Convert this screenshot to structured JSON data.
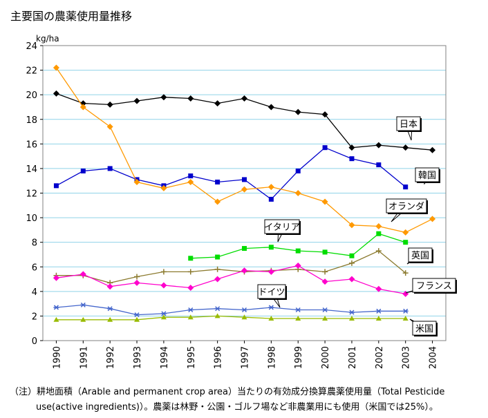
{
  "chart_data": {
    "type": "line",
    "title": "主要国の農薬使用量推移",
    "ylabel": "kg/ha",
    "xlabel": "",
    "ylim": [
      0,
      24
    ],
    "y_ticks": [
      "0",
      "2",
      "4",
      "6",
      "8",
      "10",
      "12",
      "14",
      "16",
      "18",
      "20",
      "22",
      "24"
    ],
    "categories": [
      "1990",
      "1991",
      "1992",
      "1993",
      "1994",
      "1995",
      "1996",
      "1997",
      "1998",
      "1999",
      "2000",
      "2001",
      "2002",
      "2003",
      "2004"
    ],
    "grid": "horizontal",
    "legend": "callouts",
    "series": [
      {
        "name": "日本",
        "color": "#000000",
        "marker": "diamond",
        "values": [
          20.1,
          19.3,
          19.2,
          19.5,
          19.8,
          19.7,
          19.3,
          19.7,
          19.0,
          18.6,
          18.4,
          15.7,
          15.9,
          15.7,
          15.5
        ]
      },
      {
        "name": "韓国",
        "color": "#0000cc",
        "marker": "square",
        "values": [
          12.6,
          13.8,
          14.0,
          13.1,
          12.6,
          13.4,
          12.9,
          13.1,
          11.5,
          13.8,
          15.7,
          14.8,
          14.3,
          12.5,
          null
        ]
      },
      {
        "name": "オランダ",
        "color": "#ff9900",
        "marker": "diamond",
        "values": [
          22.2,
          19.0,
          17.4,
          12.9,
          12.4,
          12.9,
          11.3,
          12.3,
          12.5,
          12.0,
          11.3,
          9.4,
          9.3,
          8.8,
          9.9
        ]
      },
      {
        "name": "イタリア",
        "color": "#00dd00",
        "marker": "square",
        "values": [
          null,
          null,
          null,
          null,
          null,
          6.7,
          6.8,
          7.5,
          7.6,
          7.3,
          7.2,
          6.9,
          8.7,
          8.0,
          null
        ]
      },
      {
        "name": "英国",
        "color": "#8b7a2e",
        "marker": "plus",
        "values": [
          5.3,
          5.3,
          4.7,
          5.2,
          5.6,
          5.6,
          5.8,
          5.6,
          5.7,
          5.8,
          5.6,
          6.3,
          7.3,
          5.5,
          null
        ]
      },
      {
        "name": "フランス",
        "color": "#ff00cc",
        "marker": "diamond",
        "values": [
          5.1,
          5.4,
          4.4,
          4.7,
          4.5,
          4.3,
          5.0,
          5.7,
          5.6,
          6.1,
          4.8,
          5.0,
          4.2,
          3.8,
          null
        ]
      },
      {
        "name": "ドイツ",
        "color": "#4466cc",
        "marker": "star",
        "values": [
          2.7,
          2.9,
          2.6,
          2.1,
          2.2,
          2.5,
          2.6,
          2.5,
          2.7,
          2.5,
          2.5,
          2.3,
          2.4,
          2.4,
          null
        ]
      },
      {
        "name": "米国",
        "color": "#99bb00",
        "marker": "triangle",
        "values": [
          1.7,
          1.7,
          1.7,
          1.7,
          1.9,
          1.9,
          2.0,
          1.9,
          1.8,
          1.8,
          1.8,
          1.8,
          1.8,
          1.8,
          null
        ]
      }
    ]
  },
  "notes": {
    "line1": "（注）耕地面積（Arable and permanent crop area）当たりの有効成分換算農薬使用量（Total Pesticide",
    "line2": "use(active ingredients)）。農薬は林野・公園・ゴルフ場など非農業用にも使用（米国では25%）。"
  }
}
